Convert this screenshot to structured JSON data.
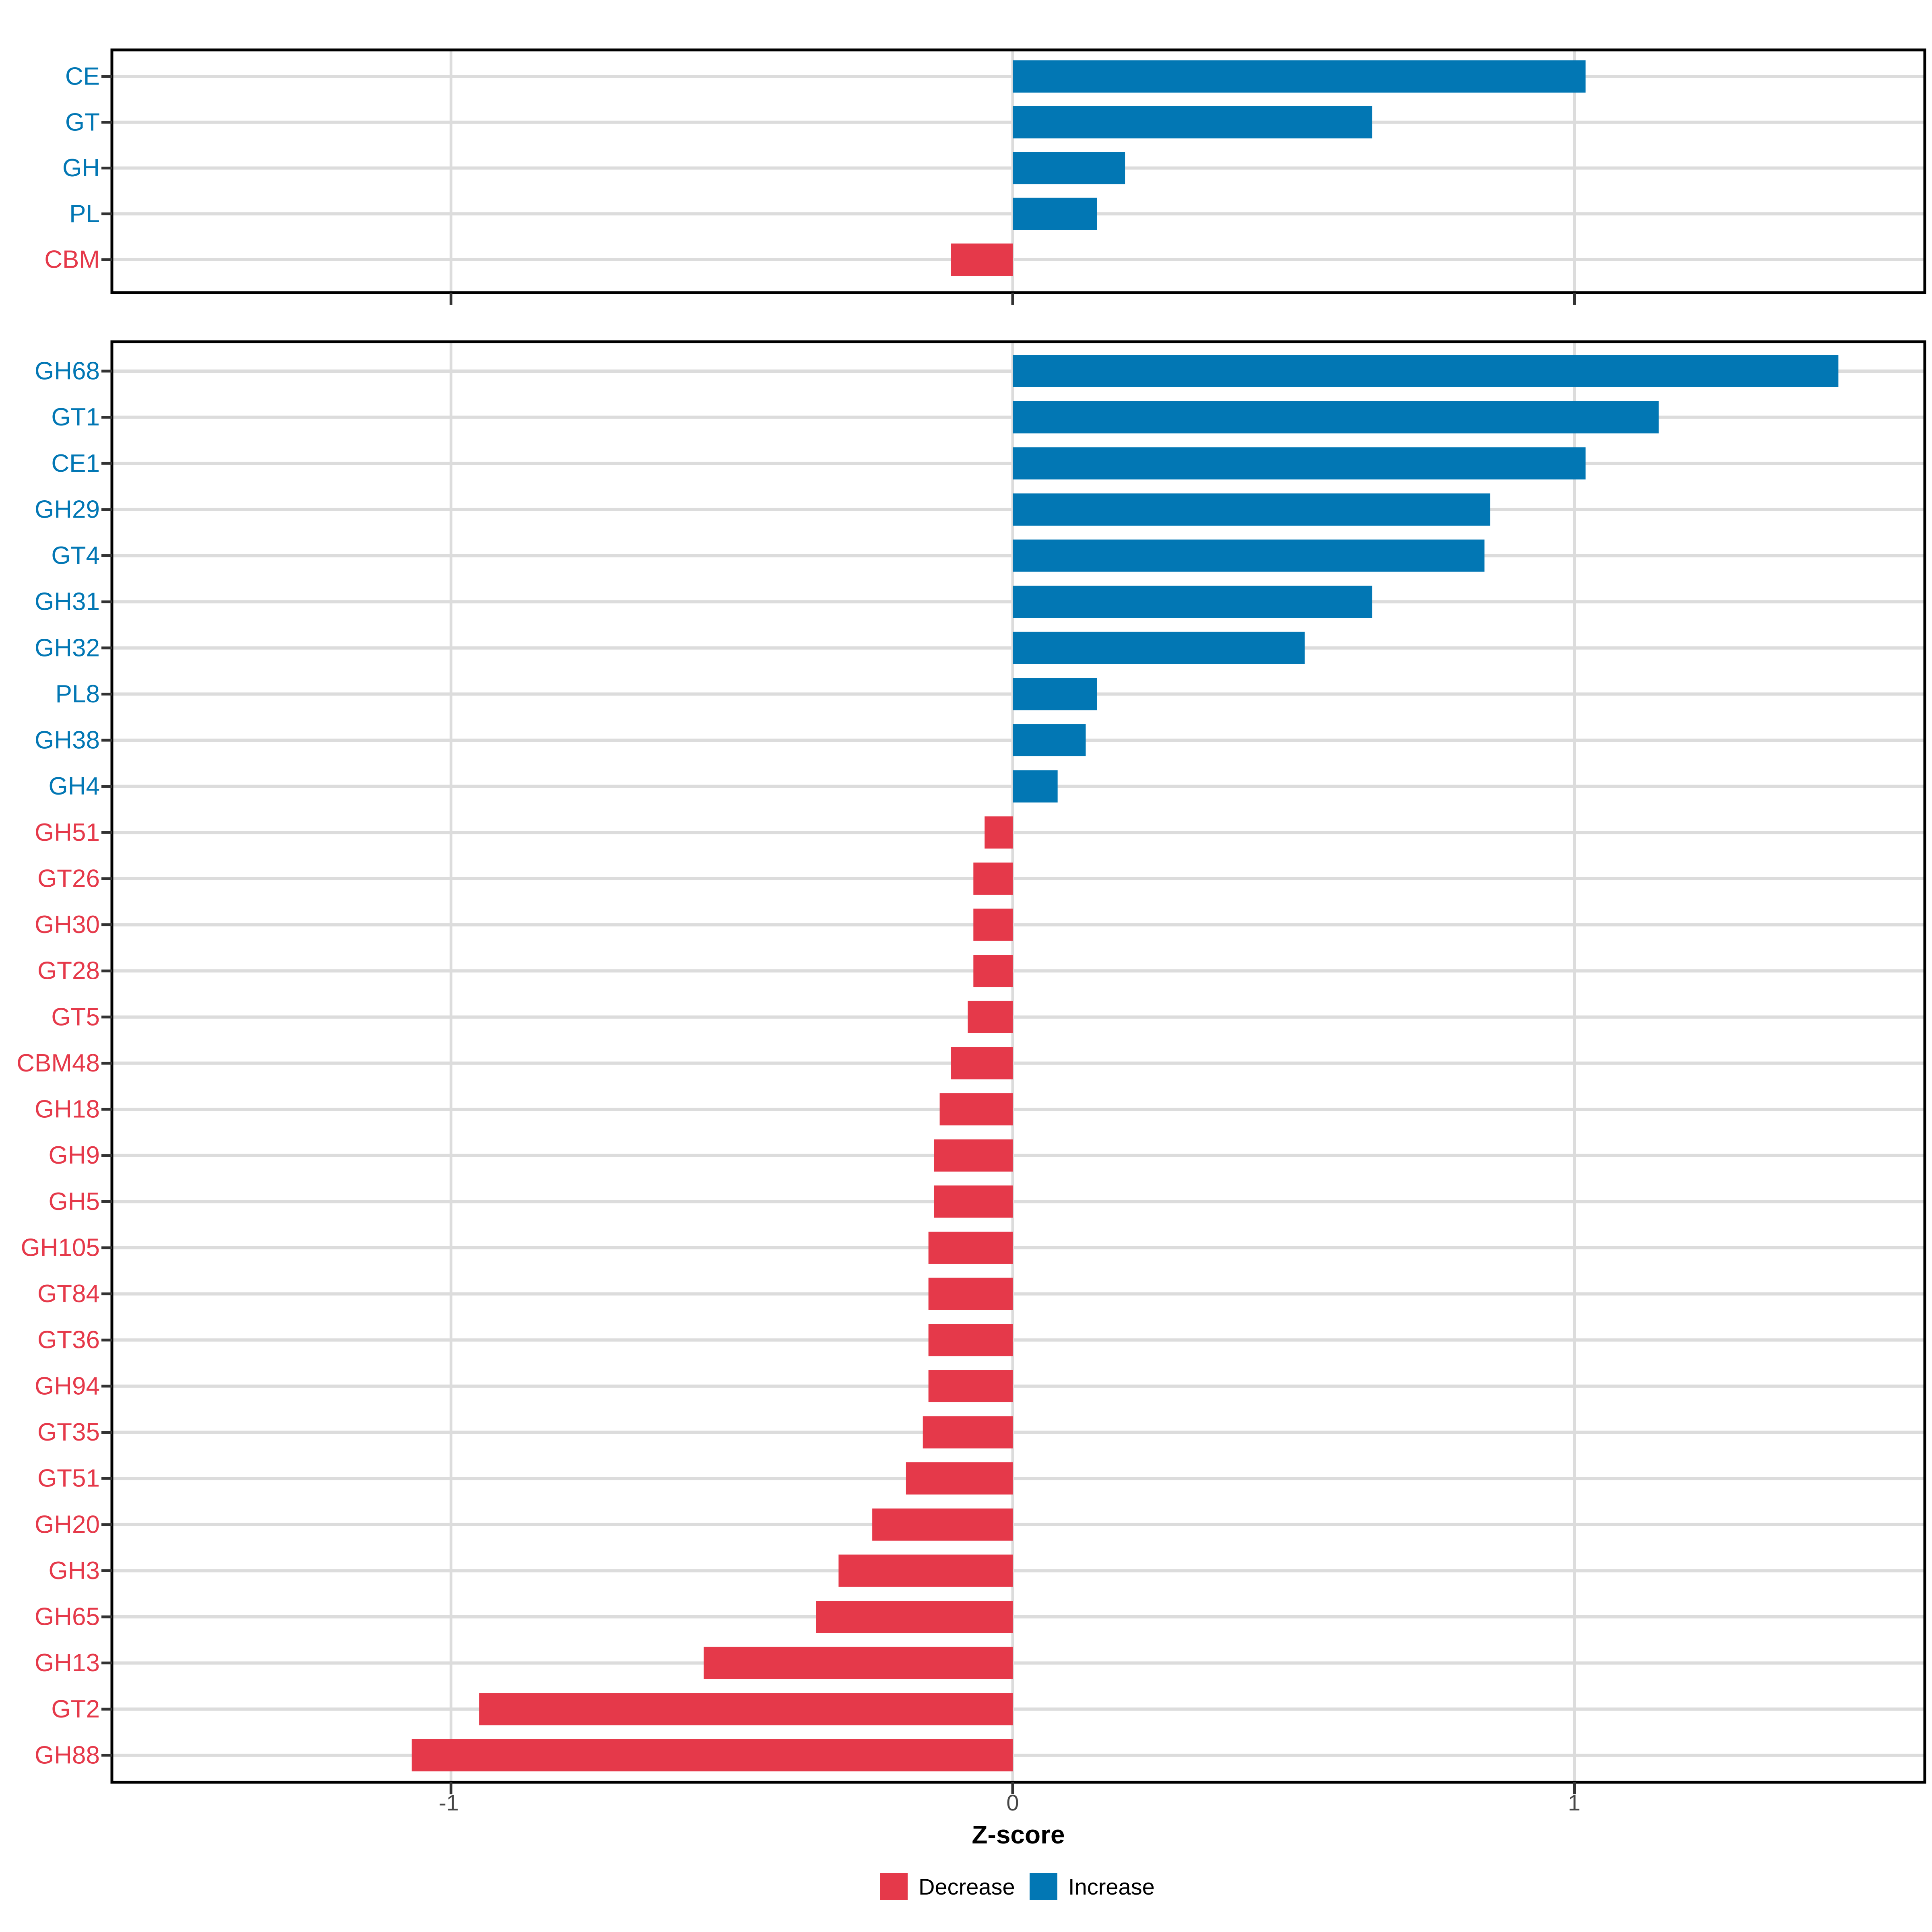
{
  "figure": {
    "axis_title": "Z-score",
    "x_ticks": [
      {
        "label": "-1",
        "value": -1
      },
      {
        "label": "0",
        "value": 0
      },
      {
        "label": "1",
        "value": 1
      }
    ],
    "legend": {
      "items": [
        {
          "label": "Decrease",
          "color": "#e5394a"
        },
        {
          "label": "Increase",
          "color": "#0277b4"
        }
      ]
    },
    "colors": {
      "increase": "#0277b4",
      "decrease": "#e5394a",
      "grid": "#dcdcdc",
      "tick_mark": "#333333",
      "axis_text": "#474747",
      "panel_border": "#000000",
      "background": "#ffffff"
    }
  },
  "chart_data": [
    {
      "type": "bar",
      "orientation": "horizontal",
      "title": "",
      "xlabel": "Z-score",
      "ylabel": "",
      "xlim": [
        -1.6,
        1.62
      ],
      "grid": true,
      "legend_position": "bottom",
      "categories": [
        "CE",
        "GT",
        "GH",
        "PL",
        "CBM"
      ],
      "values": [
        1.02,
        0.64,
        0.2,
        0.15,
        -0.11
      ]
    },
    {
      "type": "bar",
      "orientation": "horizontal",
      "title": "",
      "xlabel": "Z-score",
      "ylabel": "",
      "xlim": [
        -1.6,
        1.62
      ],
      "grid": true,
      "legend_position": "bottom",
      "categories": [
        "GH68",
        "GT1",
        "CE1",
        "GH29",
        "GT4",
        "GH31",
        "GH32",
        "PL8",
        "GH38",
        "GH4",
        "GH51",
        "GT26",
        "GH30",
        "GT28",
        "GT5",
        "CBM48",
        "GH18",
        "GH9",
        "GH5",
        "GH105",
        "GT84",
        "GT36",
        "GH94",
        "GT35",
        "GT51",
        "GH20",
        "GH3",
        "GH65",
        "GH13",
        "GT2",
        "GH88"
      ],
      "values": [
        1.47,
        1.15,
        1.02,
        0.85,
        0.84,
        0.64,
        0.52,
        0.15,
        0.13,
        0.08,
        -0.05,
        -0.07,
        -0.07,
        -0.07,
        -0.08,
        -0.11,
        -0.13,
        -0.14,
        -0.14,
        -0.15,
        -0.15,
        -0.15,
        -0.15,
        -0.16,
        -0.19,
        -0.25,
        -0.31,
        -0.35,
        -0.55,
        -0.95,
        -1.07
      ]
    }
  ]
}
